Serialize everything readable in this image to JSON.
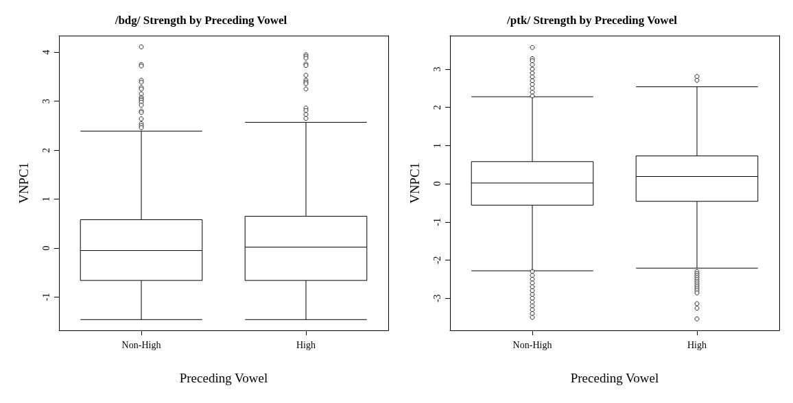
{
  "chart_data": [
    {
      "type": "box",
      "title": "/bdg/ Strength by Preceding Vowel",
      "xlabel": "Preceding Vowel",
      "ylabel": "VNPC1",
      "categories": [
        "Non-High",
        "High"
      ],
      "ylim": [
        -1.68,
        4.34
      ],
      "yticks": [
        -1,
        0,
        1,
        2,
        3,
        4
      ],
      "boxes": [
        {
          "low": -1.46,
          "q1": -0.66,
          "median": -0.05,
          "q3": 0.58,
          "high": 2.39,
          "outliers": [
            4.11,
            3.75,
            3.72,
            3.43,
            3.39,
            3.28,
            3.25,
            3.15,
            3.08,
            3.05,
            3.02,
            2.98,
            2.92,
            2.8,
            2.77,
            2.64,
            2.54,
            2.5,
            2.46
          ]
        },
        {
          "low": -1.46,
          "q1": -0.66,
          "median": 0.02,
          "q3": 0.65,
          "high": 2.57,
          "outliers": [
            3.95,
            3.92,
            3.88,
            3.76,
            3.73,
            3.53,
            3.43,
            3.39,
            3.36,
            3.25,
            2.86,
            2.81,
            2.73,
            2.65
          ]
        }
      ]
    },
    {
      "type": "box",
      "title": "/ptk/ Strength by Preceding Vowel",
      "xlabel": "Preceding Vowel",
      "ylabel": "VNPC1",
      "categories": [
        "Non-High",
        "High"
      ],
      "ylim": [
        -3.84,
        3.88
      ],
      "yticks": [
        -3,
        -2,
        -1,
        0,
        1,
        2,
        3
      ],
      "boxes": [
        {
          "low": -2.28,
          "q1": -0.56,
          "median": 0.02,
          "q3": 0.58,
          "high": 2.28,
          "outliers": [
            3.57,
            3.28,
            3.22,
            3.12,
            3.0,
            2.9,
            2.8,
            2.7,
            2.6,
            2.5,
            2.4,
            2.3,
            -2.3,
            -2.4,
            -2.5,
            -2.6,
            -2.7,
            -2.8,
            -2.9,
            -3.0,
            -3.1,
            -3.2,
            -3.3,
            -3.4,
            -3.5
          ]
        },
        {
          "low": -2.21,
          "q1": -0.46,
          "median": 0.19,
          "q3": 0.73,
          "high": 2.54,
          "outliers": [
            2.81,
            2.71,
            -2.3,
            -2.35,
            -2.4,
            -2.45,
            -2.5,
            -2.55,
            -2.6,
            -2.65,
            -2.7,
            -2.75,
            -2.8,
            -2.86,
            -3.14,
            -3.26,
            -3.54
          ]
        }
      ]
    }
  ]
}
